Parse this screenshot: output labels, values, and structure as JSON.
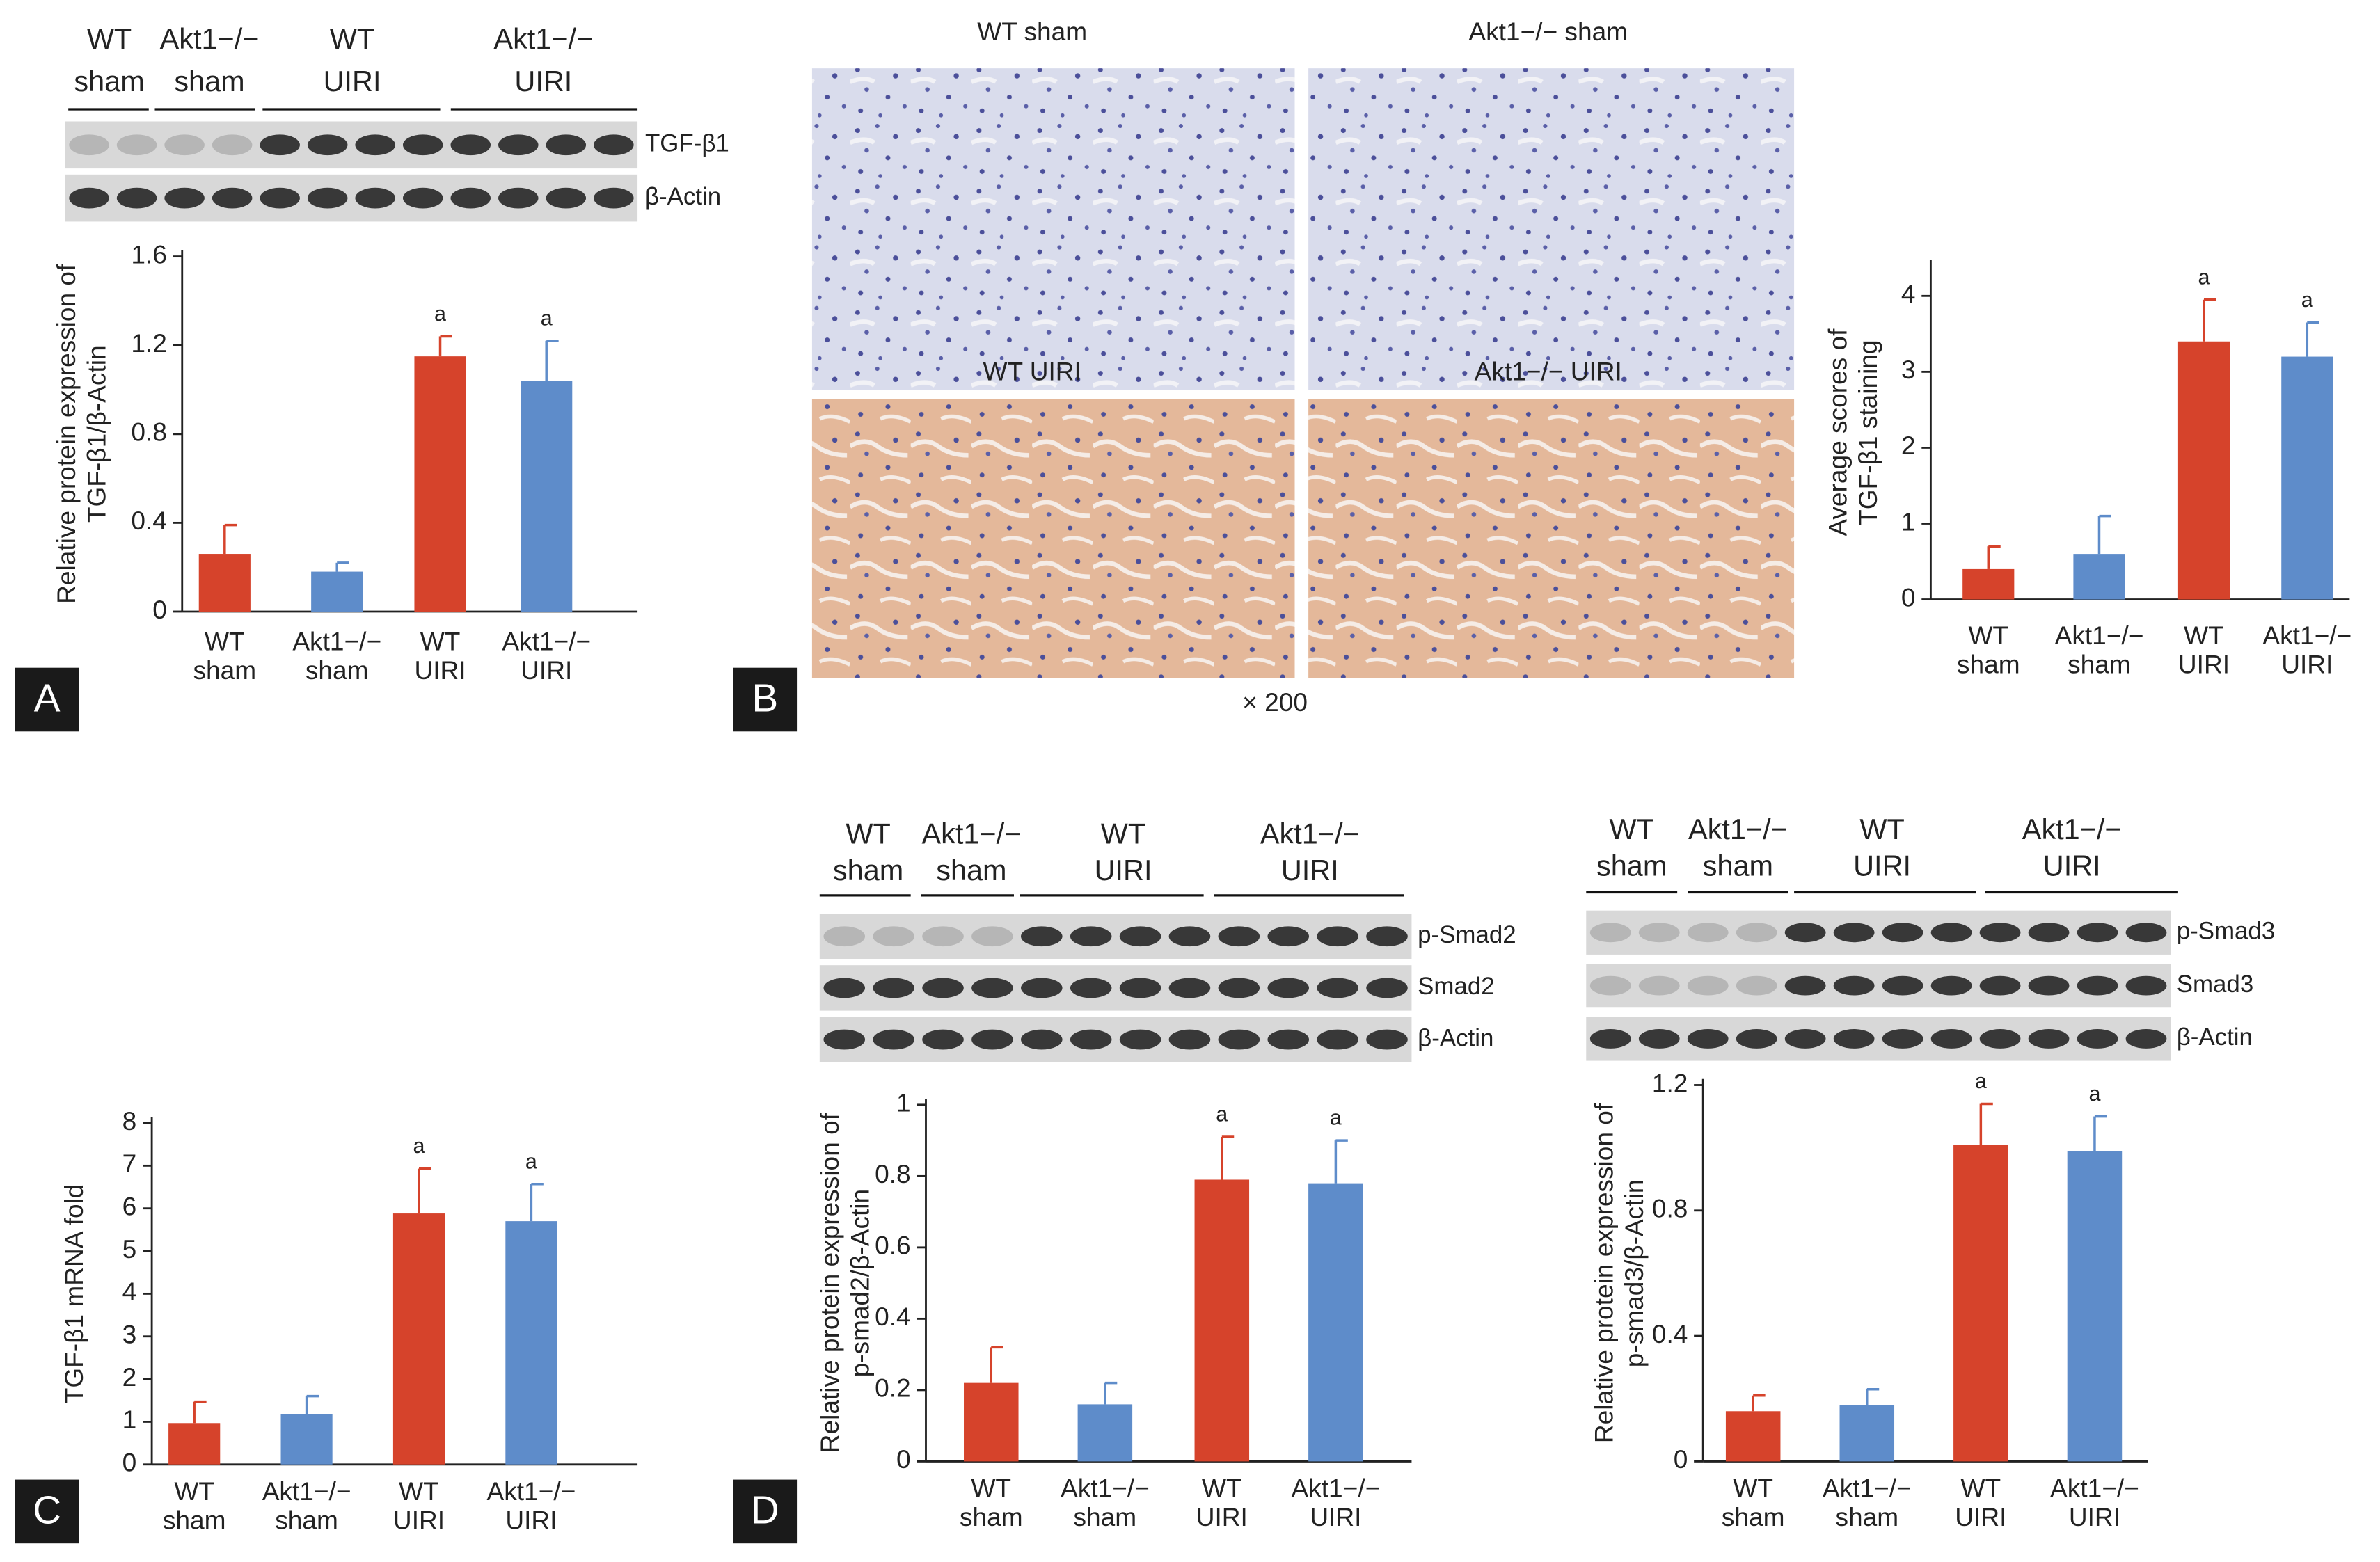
{
  "figure": {
    "panels": [
      "A",
      "B",
      "C",
      "D"
    ],
    "magnification": "× 200",
    "micrographs": [
      "WT sham",
      "Akt1−/− sham",
      "WT UIRI",
      "Akt1−/− UIRI"
    ],
    "blots": [
      {
        "groups": [
          [
            "WT",
            "sham"
          ],
          [
            "Akt1−/−",
            "sham"
          ],
          [
            "WT",
            "UIRI"
          ],
          [
            "Akt1−/−",
            "UIRI"
          ]
        ],
        "bands": [
          "TGF-β1",
          "β-Actin"
        ]
      },
      {
        "groups": [
          [
            "WT",
            "sham"
          ],
          [
            "Akt1−/−",
            "sham"
          ],
          [
            "WT",
            "UIRI"
          ],
          [
            "Akt1−/−",
            "UIRI"
          ]
        ],
        "bands": [
          "p-Smad2",
          "Smad2",
          "β-Actin"
        ]
      },
      {
        "groups": [
          [
            "WT",
            "sham"
          ],
          [
            "Akt1−/−",
            "sham"
          ],
          [
            "WT",
            "UIRI"
          ],
          [
            "Akt1−/−",
            "UIRI"
          ]
        ],
        "bands": [
          "p-Smad3",
          "Smad3",
          "β-Actin"
        ]
      }
    ]
  },
  "chart_data": [
    {
      "type": "bar",
      "ylabel": [
        "Relative protein expression of",
        "TGF-β1/β-Actin"
      ],
      "categories": [
        [
          "WT",
          "sham"
        ],
        [
          "Akt1−/−",
          "sham"
        ],
        [
          "WT",
          "UIRI"
        ],
        [
          "Akt1−/−",
          "UIRI"
        ]
      ],
      "values": [
        0.26,
        0.18,
        1.15,
        1.04
      ],
      "errors": [
        0.13,
        0.04,
        0.09,
        0.18
      ],
      "significance": [
        null,
        null,
        "a",
        "a"
      ],
      "colors": [
        "#d6432b",
        "#5e8cca",
        "#d6432b",
        "#5e8cca"
      ],
      "ylim": [
        0,
        1.6
      ],
      "yticks": [
        0,
        0.4,
        0.8,
        1.2,
        1.6
      ]
    },
    {
      "type": "bar",
      "ylabel": [
        "Average scores of",
        "TGF-β1 staining"
      ],
      "categories": [
        [
          "WT",
          "sham"
        ],
        [
          "Akt1−/−",
          "sham"
        ],
        [
          "WT",
          "UIRI"
        ],
        [
          "Akt1−/−",
          "UIRI"
        ]
      ],
      "values": [
        0.4,
        0.6,
        3.4,
        3.2
      ],
      "errors": [
        0.3,
        0.5,
        0.55,
        0.45
      ],
      "significance": [
        null,
        null,
        "a",
        "a"
      ],
      "colors": [
        "#d6432b",
        "#5e8cca",
        "#d6432b",
        "#5e8cca"
      ],
      "ylim": [
        0,
        4.4
      ],
      "yticks": [
        0,
        1,
        2,
        3,
        4
      ]
    },
    {
      "type": "bar",
      "ylabel": [
        "TGF-β1 mRNA fold"
      ],
      "categories": [
        [
          "WT",
          "sham"
        ],
        [
          "Akt1−/−",
          "sham"
        ],
        [
          "WT",
          "UIRI"
        ],
        [
          "Akt1−/−",
          "UIRI"
        ]
      ],
      "values": [
        0.97,
        1.17,
        5.88,
        5.7
      ],
      "errors": [
        0.5,
        0.43,
        1.05,
        0.87
      ],
      "significance": [
        null,
        null,
        "a",
        "a"
      ],
      "colors": [
        "#d6432b",
        "#5e8cca",
        "#d6432b",
        "#5e8cca"
      ],
      "ylim": [
        0,
        8
      ],
      "yticks": [
        0,
        1,
        2,
        3,
        4,
        5,
        6,
        7,
        8
      ]
    },
    {
      "type": "bar",
      "ylabel": [
        "Relative protein expression of",
        "p-smad2/β-Actin"
      ],
      "categories": [
        [
          "WT",
          "sham"
        ],
        [
          "Akt1−/−",
          "sham"
        ],
        [
          "WT",
          "UIRI"
        ],
        [
          "Akt1−/−",
          "UIRI"
        ]
      ],
      "values": [
        0.22,
        0.16,
        0.79,
        0.78
      ],
      "errors": [
        0.1,
        0.06,
        0.12,
        0.12
      ],
      "significance": [
        null,
        null,
        "a",
        "a"
      ],
      "colors": [
        "#d6432b",
        "#5e8cca",
        "#d6432b",
        "#5e8cca"
      ],
      "ylim": [
        0,
        1
      ],
      "yticks": [
        0,
        0.2,
        0.4,
        0.6,
        0.8,
        1
      ]
    },
    {
      "type": "bar",
      "ylabel": [
        "Relative protein expression of",
        "p-smad3/β-Actin"
      ],
      "categories": [
        [
          "WT",
          "sham"
        ],
        [
          "Akt1−/−",
          "sham"
        ],
        [
          "WT",
          "UIRI"
        ],
        [
          "Akt1−/−",
          "UIRI"
        ]
      ],
      "values": [
        0.16,
        0.18,
        1.01,
        0.99
      ],
      "errors": [
        0.05,
        0.05,
        0.13,
        0.11
      ],
      "significance": [
        null,
        null,
        "a",
        "a"
      ],
      "colors": [
        "#d6432b",
        "#5e8cca",
        "#d6432b",
        "#5e8cca"
      ],
      "ylim": [
        0,
        1.2
      ],
      "yticks": [
        0,
        0.4,
        0.8,
        1.2
      ]
    }
  ]
}
